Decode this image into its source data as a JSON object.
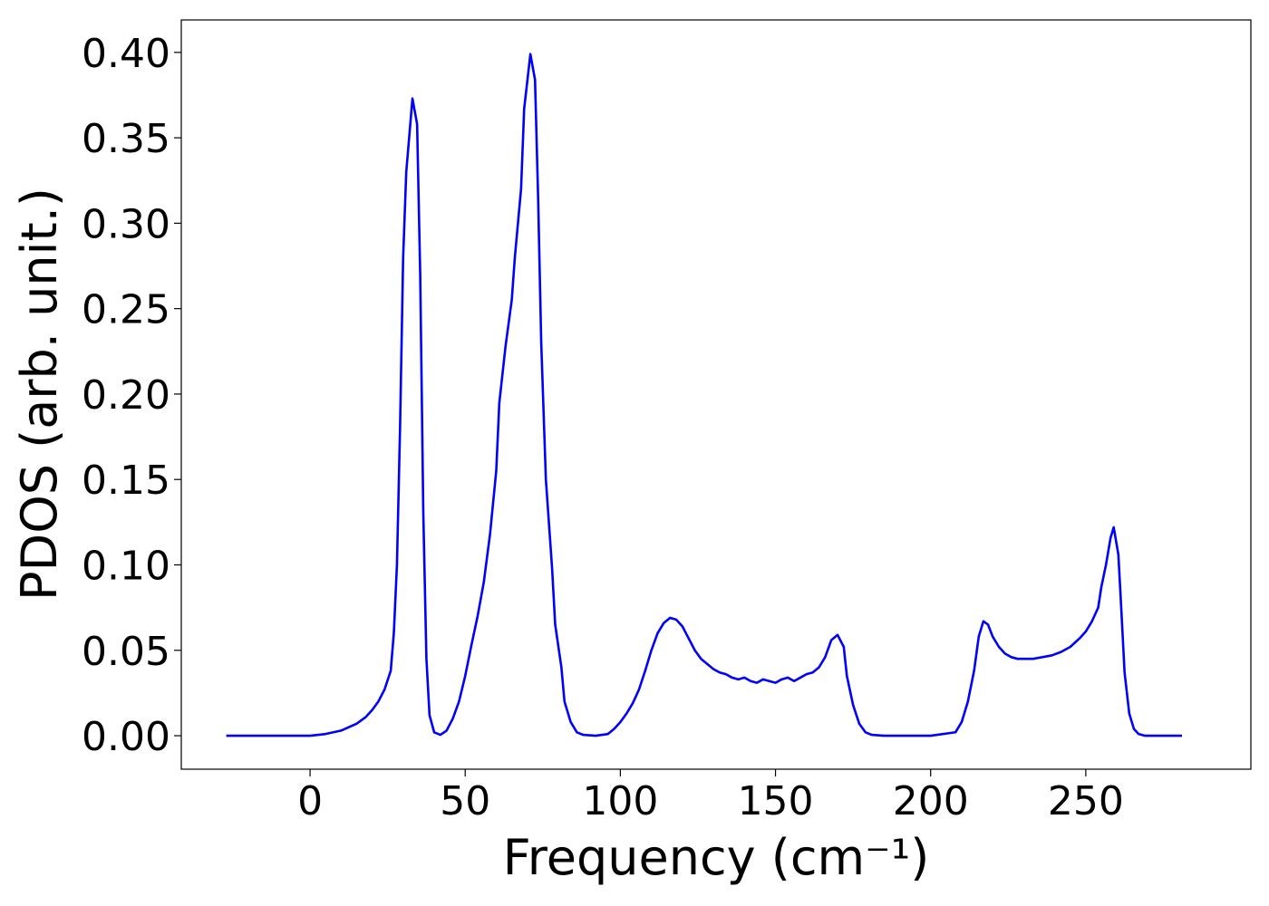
{
  "chart_data": {
    "type": "line",
    "x_label": "Frequency (cm⁻¹)",
    "y_label": "PDOS (arb. unit.)",
    "x": [
      -27,
      0,
      5,
      10,
      15,
      18,
      20,
      22,
      24,
      26,
      27,
      28,
      29,
      30,
      31,
      33,
      34.5,
      35.5,
      36.5,
      37.5,
      38.5,
      40,
      42,
      44,
      46,
      48,
      50,
      52,
      54,
      56,
      58,
      60,
      61,
      63,
      65,
      66,
      68,
      69,
      71,
      72.5,
      73.5,
      74.5,
      76,
      78,
      79,
      81,
      82,
      84,
      86,
      88,
      92,
      96,
      98,
      100,
      102,
      104,
      106,
      108,
      110,
      112,
      114,
      116,
      118,
      120,
      122,
      124,
      126,
      128,
      130,
      132,
      134,
      136,
      138,
      140,
      142,
      144,
      146,
      148,
      150,
      152,
      154,
      156,
      158,
      160,
      162,
      164,
      166,
      168,
      170,
      172,
      173,
      175,
      177,
      179,
      181,
      185,
      200,
      208,
      210,
      212,
      214,
      215.5,
      217,
      218.5,
      220,
      222,
      224,
      226,
      228,
      230,
      233,
      236,
      239,
      242,
      245,
      248,
      250,
      252,
      254,
      255,
      256.5,
      258,
      259,
      260.5,
      261.5,
      262.5,
      264,
      265.5,
      267,
      269,
      281
    ],
    "series": [
      {
        "name": "PDOS",
        "color": "#0000ff",
        "values": [
          0,
          0,
          0.001,
          0.003,
          0.007,
          0.011,
          0.015,
          0.02,
          0.027,
          0.038,
          0.06,
          0.1,
          0.18,
          0.28,
          0.33,
          0.373,
          0.358,
          0.27,
          0.13,
          0.045,
          0.012,
          0.002,
          0.0005,
          0.003,
          0.01,
          0.02,
          0.035,
          0.053,
          0.07,
          0.09,
          0.118,
          0.155,
          0.195,
          0.228,
          0.255,
          0.28,
          0.32,
          0.367,
          0.399,
          0.384,
          0.315,
          0.23,
          0.15,
          0.098,
          0.065,
          0.04,
          0.02,
          0.008,
          0.002,
          0.0005,
          0,
          0.001,
          0.004,
          0.008,
          0.013,
          0.019,
          0.027,
          0.038,
          0.05,
          0.06,
          0.066,
          0.069,
          0.068,
          0.064,
          0.057,
          0.05,
          0.045,
          0.042,
          0.039,
          0.037,
          0.036,
          0.034,
          0.033,
          0.034,
          0.032,
          0.031,
          0.033,
          0.032,
          0.031,
          0.033,
          0.034,
          0.032,
          0.034,
          0.036,
          0.037,
          0.04,
          0.046,
          0.056,
          0.059,
          0.052,
          0.035,
          0.018,
          0.007,
          0.002,
          0.0005,
          0,
          0,
          0.002,
          0.008,
          0.02,
          0.038,
          0.058,
          0.067,
          0.065,
          0.058,
          0.052,
          0.048,
          0.046,
          0.045,
          0.045,
          0.045,
          0.046,
          0.047,
          0.049,
          0.052,
          0.057,
          0.061,
          0.067,
          0.075,
          0.087,
          0.1,
          0.116,
          0.122,
          0.106,
          0.072,
          0.037,
          0.013,
          0.004,
          0.001,
          0,
          0
        ]
      }
    ],
    "xlim": [
      -41.5,
      303.2
    ],
    "ylim": [
      -0.0196,
      0.419
    ],
    "xticks": [
      0,
      50,
      100,
      150,
      200,
      250
    ],
    "yticks": [
      {
        "value": 0,
        "label": "0.00"
      },
      {
        "value": 0.05,
        "label": "0.05"
      },
      {
        "value": 0.1,
        "label": "0.10"
      },
      {
        "value": 0.15,
        "label": "0.15"
      },
      {
        "value": 0.2,
        "label": "0.20"
      },
      {
        "value": 0.25,
        "label": "0.25"
      },
      {
        "value": 0.3,
        "label": "0.30"
      },
      {
        "value": 0.35,
        "label": "0.35"
      },
      {
        "value": 0.4,
        "label": "0.40"
      }
    ],
    "grid": false
  }
}
